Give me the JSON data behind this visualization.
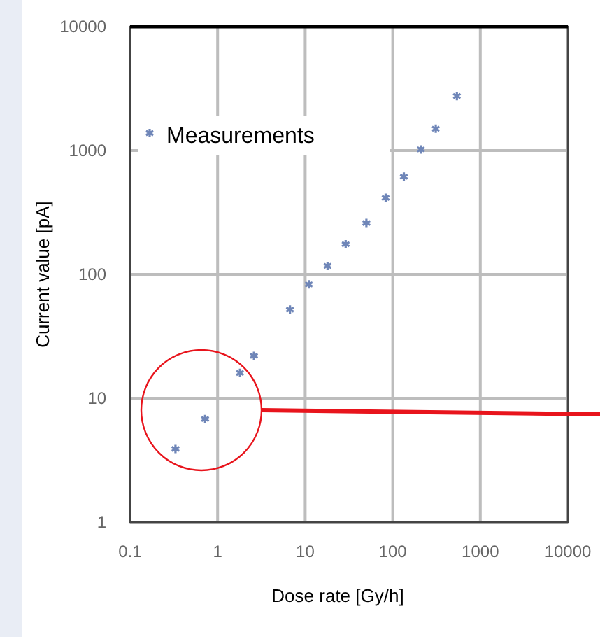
{
  "chart_data": {
    "type": "scatter",
    "xlabel": "Dose rate [Gy/h]",
    "ylabel": "Current value [pA]",
    "log": "xy",
    "xlim": [
      0.1,
      10000
    ],
    "ylim": [
      1,
      10000
    ],
    "xticks": [
      0.1,
      1,
      10,
      100,
      1000,
      10000
    ],
    "yticks": [
      1,
      10,
      100,
      1000,
      10000
    ],
    "grid": true,
    "legend": "top left",
    "marker": "cross",
    "series": [
      {
        "name": "Measurements",
        "color": "#6f86b8",
        "x": [
          0.33,
          0.72,
          1.8,
          2.6,
          6.7,
          11,
          18,
          29,
          50,
          83,
          134,
          210,
          310,
          540
        ],
        "values": [
          3.9,
          6.8,
          16,
          22,
          52,
          83,
          117,
          175,
          260,
          415,
          615,
          1020,
          1500,
          2750
        ]
      }
    ]
  }
}
